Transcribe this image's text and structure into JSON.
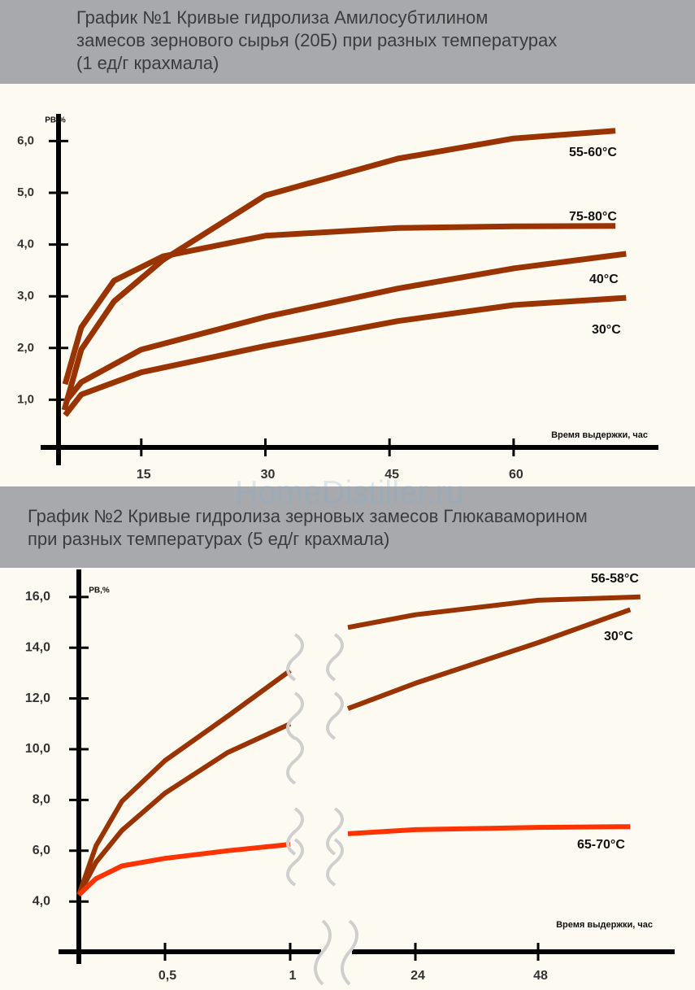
{
  "watermark": "HomeDistiller.ru",
  "chart_data": [
    {
      "type": "line",
      "title": "График №1 Кривые гидролиза Амилосубтилином\nзамесов зернового сырья (20Б) при разных температурах\n(1 ед/г крахмала)",
      "y_label": "РВ,%",
      "x_label": "Время выдержки, час",
      "xlim": [
        5,
        77.5
      ],
      "xticks": [
        15,
        30,
        45,
        60
      ],
      "ylim": [
        0,
        6.5
      ],
      "yticks": [
        {
          "value": 1,
          "label": "1,0"
        },
        {
          "value": 2,
          "label": "2,0"
        },
        {
          "value": 3,
          "label": "3,0"
        },
        {
          "value": 4,
          "label": "4,0"
        },
        {
          "value": 5,
          "label": "5,0"
        },
        {
          "value": 6,
          "label": "6,0"
        }
      ],
      "series": [
        {
          "name": "55-60°C",
          "color": "#993300",
          "x": [
            5.7,
            7.75,
            11.7,
            17.6,
            30,
            46,
            60,
            72.3
          ],
          "values": [
            0.8,
            1.97,
            2.9,
            3.7,
            4.95,
            5.66,
            6.05,
            6.2
          ]
        },
        {
          "name": "75-80°C",
          "color": "#993300",
          "x": [
            5.8,
            7.75,
            11.7,
            17.6,
            30,
            46,
            60,
            72.3
          ],
          "values": [
            1.3,
            2.4,
            3.3,
            3.77,
            4.17,
            4.32,
            4.35,
            4.36
          ]
        },
        {
          "name": "40°C",
          "color": "#993300",
          "x": [
            5.8,
            7.75,
            15,
            30,
            46,
            60,
            73.6
          ],
          "values": [
            0.95,
            1.34,
            1.97,
            2.6,
            3.15,
            3.54,
            3.82
          ]
        },
        {
          "name": "30°C",
          "color": "#993300",
          "x": [
            5.8,
            7.75,
            15,
            30,
            46,
            60,
            73.6
          ],
          "values": [
            0.7,
            1.1,
            1.53,
            2.04,
            2.52,
            2.83,
            2.97
          ]
        }
      ]
    },
    {
      "type": "line",
      "title": "График №2 Кривые гидролиза зерновых замесов Глюкаваморином\nпри разных температурах (5 ед/г крахмала)",
      "y_label": "РВ,%",
      "x_label": "Время выдержки, час",
      "xlim": [
        0,
        72
      ],
      "xticks": [
        {
          "value": 0.5,
          "label": "0,5"
        },
        1,
        24,
        48
      ],
      "ylim": [
        2,
        17.1
      ],
      "yticks": [
        {
          "value": 4,
          "label": "4,0"
        },
        {
          "value": 6,
          "label": "6,0"
        },
        {
          "value": 8,
          "label": "8,0"
        },
        {
          "value": 10,
          "label": "10,0"
        },
        {
          "value": 12,
          "label": "12,0"
        },
        {
          "value": 14,
          "label": "14,0"
        },
        {
          "value": 16,
          "label": "16,0"
        }
      ],
      "series": [
        {
          "name": "56-58°C",
          "color": "#993300",
          "x": [
            0,
            0.1,
            0.25,
            0.5,
            0.75,
            1,
            null,
            11.6,
            24,
            48,
            68
          ],
          "values": [
            4.26,
            6.2,
            7.95,
            9.55,
            11.3,
            13.1,
            null,
            14.8,
            15.3,
            15.87,
            16.0
          ]
        },
        {
          "name": "30°C",
          "color": "#993300",
          "x": [
            0,
            0.1,
            0.25,
            0.5,
            0.75,
            1,
            null,
            11.6,
            24,
            48,
            66
          ],
          "values": [
            4.26,
            5.55,
            6.8,
            8.27,
            9.87,
            11.0,
            null,
            11.6,
            12.6,
            14.2,
            15.5
          ]
        },
        {
          "name": "65-70°C",
          "color": "#ff3300",
          "x": [
            0,
            0.1,
            0.25,
            0.5,
            0.75,
            1,
            null,
            11.6,
            24,
            48,
            66
          ],
          "values": [
            4.26,
            4.9,
            5.4,
            5.7,
            6.0,
            6.25,
            null,
            6.67,
            6.83,
            6.92,
            6.95
          ]
        }
      ]
    }
  ]
}
